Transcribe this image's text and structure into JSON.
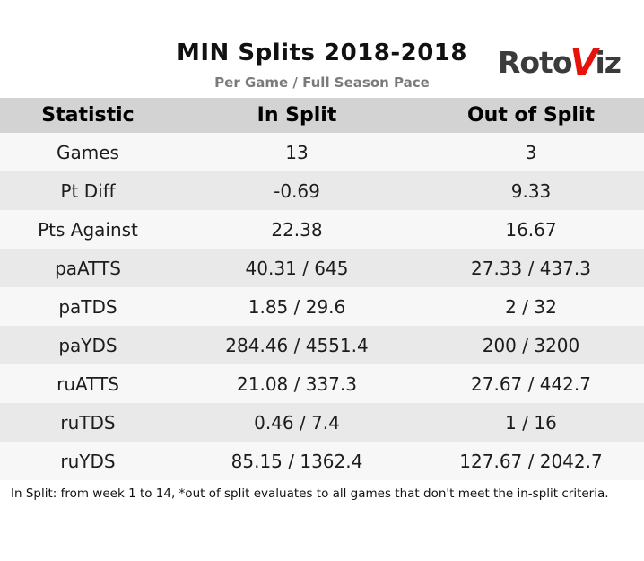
{
  "logo": {
    "roto": "Roto",
    "v": "V",
    "iz": "iz"
  },
  "header": {
    "title": "MIN Splits 2018-2018",
    "subtitle": "Per Game / Full Season Pace"
  },
  "table": {
    "columns": [
      "Statistic",
      "In Split",
      "Out of Split"
    ],
    "rows": [
      [
        "Games",
        "13",
        "3"
      ],
      [
        "Pt Diff",
        "-0.69",
        "9.33"
      ],
      [
        "Pts Against",
        "22.38",
        "16.67"
      ],
      [
        "paATTS",
        "40.31 / 645",
        "27.33 / 437.3"
      ],
      [
        "paTDS",
        "1.85 / 29.6",
        "2 / 32"
      ],
      [
        "paYDS",
        "284.46 / 4551.4",
        "200 / 3200"
      ],
      [
        "ruATTS",
        "21.08 / 337.3",
        "27.67 / 442.7"
      ],
      [
        "ruTDS",
        "0.46 / 7.4",
        "1 / 16"
      ],
      [
        "ruYDS",
        "85.15 / 1362.4",
        "127.67 / 2042.7"
      ]
    ]
  },
  "footnote": "In Split: from week 1 to 14,  *out of split evaluates to all games that don't meet the in-split criteria.",
  "colors": {
    "accent_red": "#e8120b",
    "header_bg": "#d3d3d3",
    "row_light": "#f7f7f7",
    "row_dark": "#e9e9e9"
  },
  "chart_data": {
    "type": "table",
    "title": "MIN Splits 2018-2018",
    "subtitle": "Per Game / Full Season Pace",
    "columns": [
      "Statistic",
      "In Split",
      "Out of Split"
    ],
    "rows": [
      [
        "Games",
        "13",
        "3"
      ],
      [
        "Pt Diff",
        "-0.69",
        "9.33"
      ],
      [
        "Pts Against",
        "22.38",
        "16.67"
      ],
      [
        "paATTS",
        "40.31 / 645",
        "27.33 / 437.3"
      ],
      [
        "paTDS",
        "1.85 / 29.6",
        "2 / 32"
      ],
      [
        "paYDS",
        "284.46 / 4551.4",
        "200 / 3200"
      ],
      [
        "ruATTS",
        "21.08 / 337.3",
        "27.67 / 442.7"
      ],
      [
        "ruTDS",
        "0.46 / 7.4",
        "1 / 16"
      ],
      [
        "ruYDS",
        "85.15 / 1362.4",
        "127.67 / 2042.7"
      ]
    ],
    "note": "In Split: from week 1 to 14,  *out of split evaluates to all games that don't meet the in-split criteria."
  }
}
